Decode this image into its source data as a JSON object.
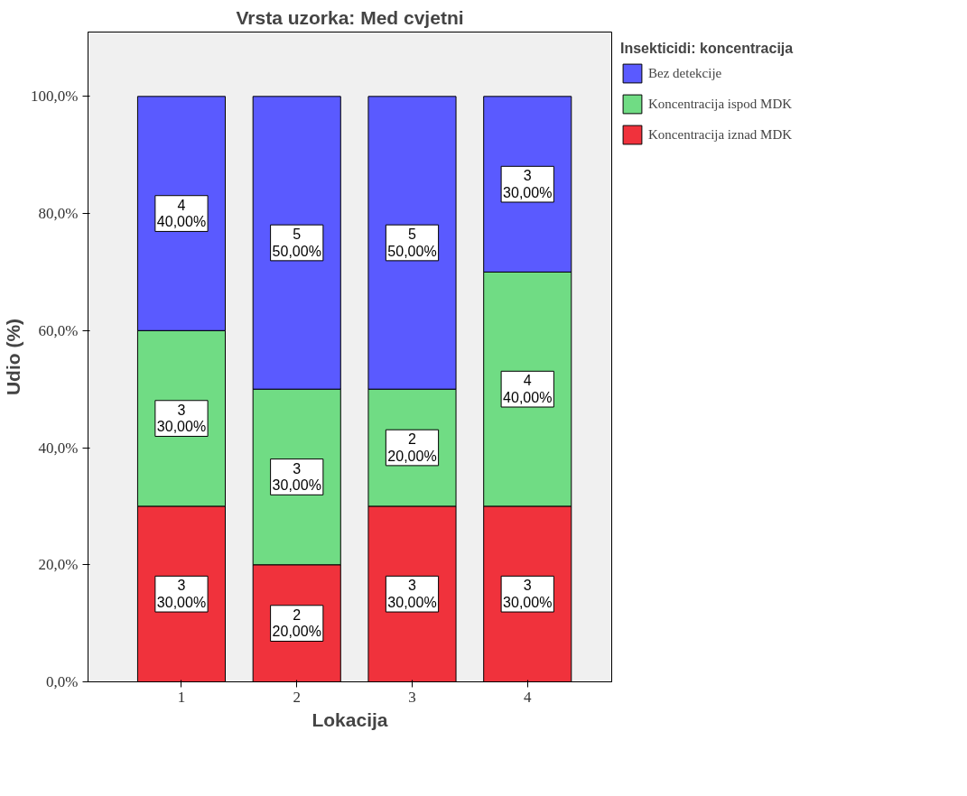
{
  "chart_data": {
    "type": "bar",
    "stacked": true,
    "title": "Vrsta uzorka: Med cvjetni",
    "xlabel": "Lokacija",
    "ylabel": "Udio (%)",
    "legend_title": "Insekticidi: koncentracija",
    "categories": [
      "1",
      "2",
      "3",
      "4"
    ],
    "series": [
      {
        "name": "Koncentracija iznad MDK",
        "color": "#f0323c",
        "values": [
          30,
          20,
          30,
          30
        ],
        "value_labels": [
          "3\n30,00%",
          "2\n20,00%",
          "3\n30,00%",
          "3\n30,00%"
        ]
      },
      {
        "name": "Koncentracija ispod MDK",
        "color": "#70dc84",
        "values": [
          30,
          30,
          20,
          40
        ],
        "value_labels": [
          "3\n30,00%",
          "3\n30,00%",
          "2\n20,00%",
          "4\n40,00%"
        ]
      },
      {
        "name": "Bez detekcije",
        "color": "#5a5aff",
        "values": [
          40,
          50,
          50,
          30
        ],
        "value_labels": [
          "4\n40,00%",
          "5\n50,00%",
          "5\n50,00%",
          "3\n30,00%"
        ]
      }
    ],
    "ylim": [
      0,
      111
    ],
    "yticks": [
      {
        "value": 0,
        "label": "0,0%"
      },
      {
        "value": 20,
        "label": "20,0%"
      },
      {
        "value": 40,
        "label": "40,0%"
      },
      {
        "value": 60,
        "label": "60,0%"
      },
      {
        "value": 80,
        "label": "80,0%"
      },
      {
        "value": 100,
        "label": "100,0%"
      }
    ],
    "grid": false,
    "legend": "top right"
  }
}
